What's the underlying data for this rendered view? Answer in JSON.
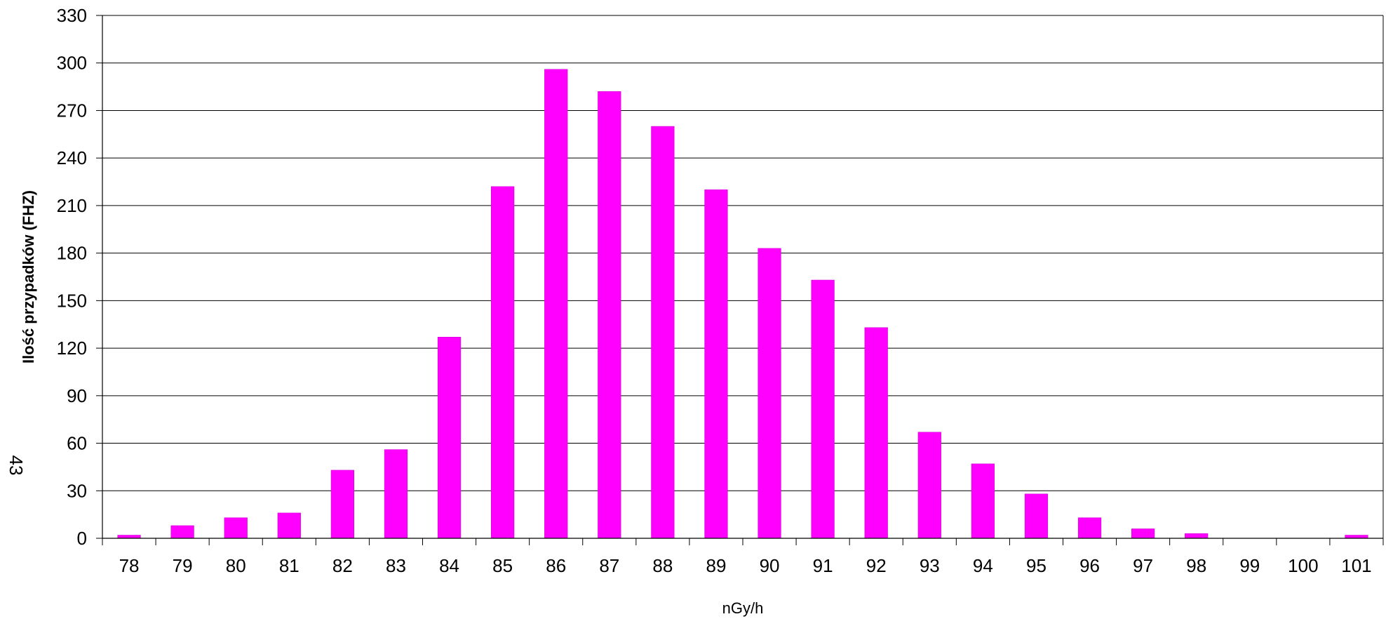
{
  "chart_data": {
    "type": "bar",
    "categories": [
      "78",
      "79",
      "80",
      "81",
      "82",
      "83",
      "84",
      "85",
      "86",
      "87",
      "88",
      "89",
      "90",
      "91",
      "92",
      "93",
      "94",
      "95",
      "96",
      "97",
      "98",
      "99",
      "100",
      "101"
    ],
    "values": [
      2,
      8,
      13,
      16,
      43,
      56,
      127,
      222,
      296,
      282,
      260,
      220,
      183,
      163,
      133,
      67,
      47,
      28,
      13,
      6,
      3,
      0,
      0,
      2
    ],
    "xlabel": "nGy/h",
    "ylabel": "Ilość przypadków (FHZ)",
    "ylim": [
      0,
      330
    ],
    "yticks": [
      0,
      30,
      60,
      90,
      120,
      150,
      180,
      210,
      240,
      270,
      300,
      330
    ],
    "grid": true,
    "legend": "none",
    "bar_color": "#FF00FF",
    "side_note": "43"
  }
}
